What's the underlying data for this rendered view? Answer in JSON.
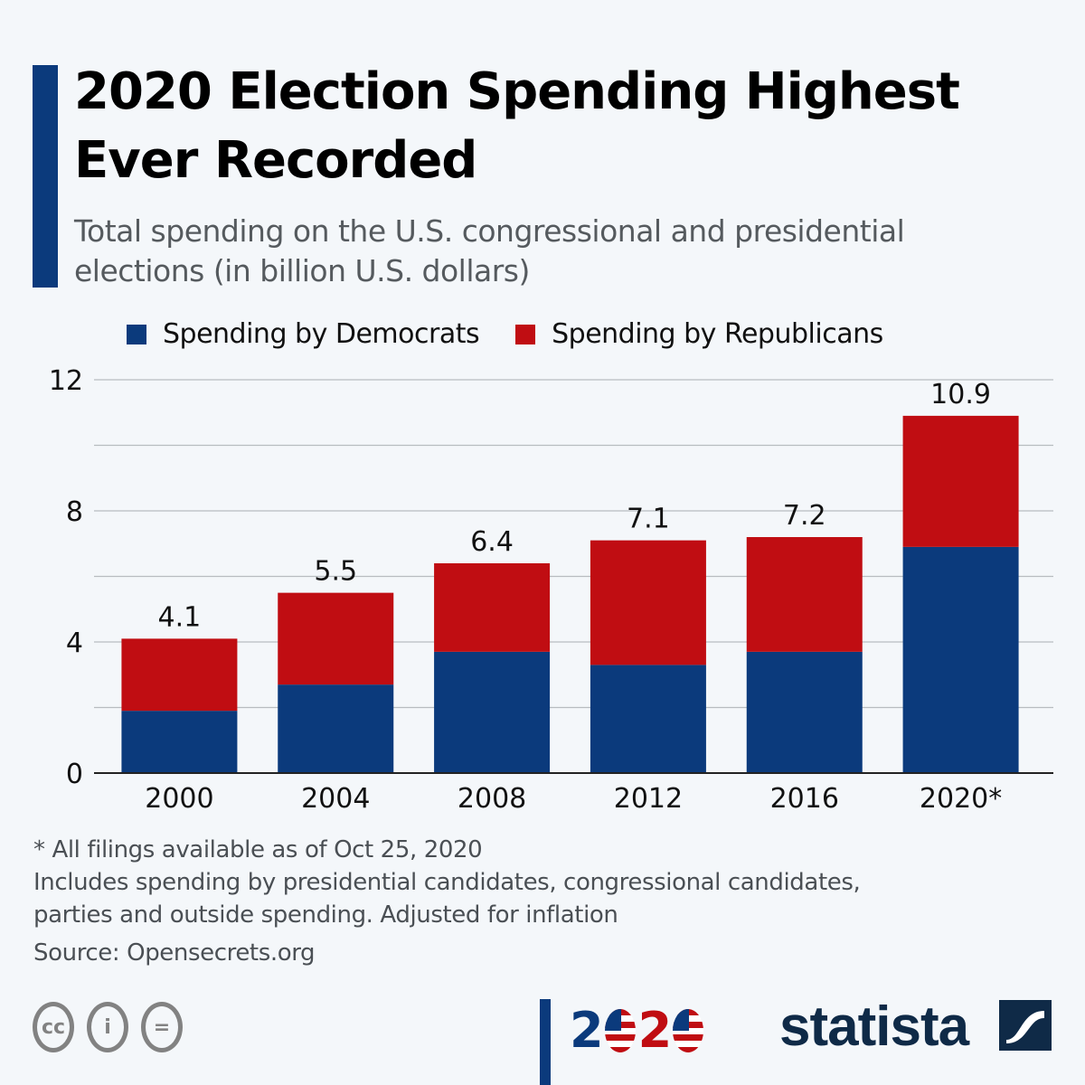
{
  "header": {
    "title_line1": "2020 Election Spending Highest",
    "title_line2": "Ever Recorded",
    "subtitle_line1": "Total spending on the U.S. congressional and presidential",
    "subtitle_line2": "elections (in billion U.S. dollars)"
  },
  "colors": {
    "democrats": "#0b3a7c",
    "republicans": "#c00d12",
    "accent": "#0b3a7c",
    "background": "#f4f7fa"
  },
  "chart_data": {
    "type": "bar",
    "stacked": true,
    "title": "2020 Election Spending Highest Ever Recorded",
    "subtitle": "Total spending on the U.S. congressional and presidential elections (in billion U.S. dollars)",
    "xlabel": "",
    "ylabel": "",
    "categories": [
      "2000",
      "2004",
      "2008",
      "2012",
      "2016",
      "2020*"
    ],
    "series": [
      {
        "name": "Spending by Democrats",
        "color": "#0b3a7c",
        "values": [
          1.9,
          2.7,
          3.7,
          3.3,
          3.7,
          6.9
        ]
      },
      {
        "name": "Spending by Republicans",
        "color": "#c00d12",
        "values": [
          2.2,
          2.8,
          2.7,
          3.8,
          3.5,
          4.0
        ]
      }
    ],
    "totals": [
      4.1,
      5.5,
      6.4,
      7.1,
      7.2,
      10.9
    ],
    "total_labels": [
      "4.1",
      "5.5",
      "6.4",
      "7.1",
      "7.2",
      "10.9"
    ],
    "ylim": [
      0,
      12
    ],
    "yticks": [
      0,
      4,
      8,
      12
    ],
    "ytick_labels": [
      "0",
      "4",
      "8",
      "12"
    ],
    "grid_step": 2,
    "grid": true,
    "legend_position": "top"
  },
  "legend": {
    "items": [
      {
        "label": "Spending by Democrats"
      },
      {
        "label": "Spending by Republicans"
      }
    ]
  },
  "footer": {
    "note1": "* All filings available as of Oct 25, 2020",
    "note2": "Includes spending by presidential candidates, congressional candidates,",
    "note3": "parties and outside spending. Adjusted for inflation",
    "source": "Source: Opensecrets.org",
    "license_icons": [
      "cc-icon",
      "attribution-icon",
      "no-derivatives-icon"
    ],
    "cc_glyphs": [
      "cc",
      "i",
      "="
    ],
    "logo_2020": {
      "d1": "2",
      "d3": "2"
    },
    "brand": "statista"
  }
}
